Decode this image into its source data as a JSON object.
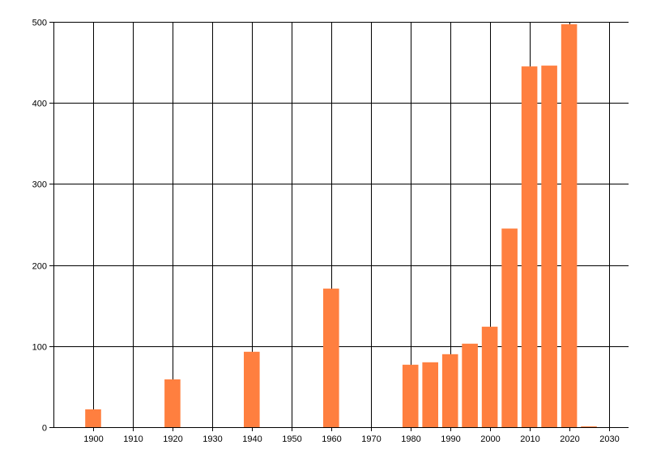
{
  "chart_data": {
    "type": "bar",
    "title": "",
    "xlabel": "",
    "ylabel": "",
    "x": [
      1900,
      1920,
      1940,
      1960,
      1980,
      1985,
      1990,
      1995,
      2000,
      2005,
      2010,
      2015,
      2020,
      2025
    ],
    "values": [
      22,
      59,
      93,
      171,
      77,
      80,
      90,
      103,
      124,
      245,
      445,
      446,
      497,
      1
    ],
    "xlim": [
      1890,
      2035
    ],
    "ylim": [
      0,
      500
    ],
    "x_ticks": [
      1900,
      1910,
      1920,
      1930,
      1940,
      1950,
      1960,
      1970,
      1980,
      1990,
      2000,
      2010,
      2020,
      2030
    ],
    "y_ticks": [
      0,
      100,
      200,
      300,
      400,
      500
    ],
    "grid": true,
    "legend": "none",
    "bar_color": "#ff7f3f",
    "grid_color": "#000000"
  }
}
